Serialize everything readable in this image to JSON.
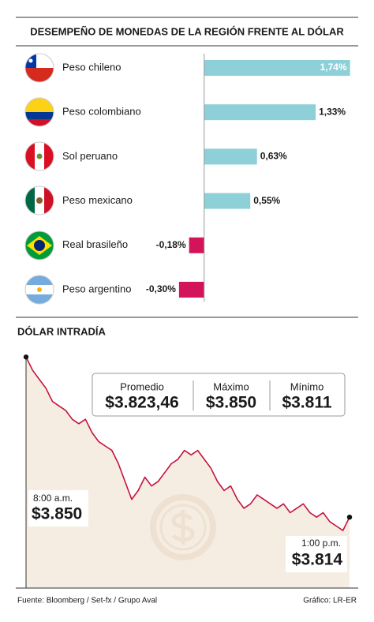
{
  "chart_data": [
    {
      "type": "bar",
      "orientation": "horizontal",
      "title": "DESEMPEÑO DE MONEDAS DE LA REGIÓN FRENTE AL DÓLAR",
      "categories": [
        "Peso chileno",
        "Peso colombiano",
        "Sol peruano",
        "Peso mexicano",
        "Real brasileño",
        "Peso argentino"
      ],
      "values": [
        1.74,
        1.33,
        0.63,
        0.55,
        -0.18,
        -0.3
      ],
      "value_labels": [
        "1,74%",
        "1,33%",
        "0,63%",
        "0,55%",
        "-0,18%",
        "-0,30%"
      ],
      "colors": {
        "positive": "#8dd0d8",
        "negative": "#d3145a"
      },
      "xlim": [
        -1.4,
        1.8
      ]
    },
    {
      "type": "line",
      "title": "DÓLAR INTRADÍA",
      "series": [
        {
          "name": "Dólar",
          "color": "#c4123f",
          "values": [
            3850,
            3847,
            3845,
            3843,
            3840,
            3839,
            3838,
            3836,
            3835,
            3836,
            3833,
            3831,
            3830,
            3829,
            3826,
            3822,
            3818,
            3820,
            3823,
            3821,
            3822,
            3824,
            3826,
            3827,
            3829,
            3828,
            3829,
            3827,
            3825,
            3822,
            3820,
            3821,
            3818,
            3816,
            3817,
            3819,
            3818,
            3817,
            3816,
            3817,
            3815,
            3816,
            3817,
            3815,
            3814,
            3815,
            3813,
            3812,
            3811,
            3814
          ]
        }
      ],
      "area_color": "#f6ede2",
      "ylim": [
        3808,
        3852
      ],
      "stats": [
        {
          "label": "Promedio",
          "value": "$3.823,46"
        },
        {
          "label": "Máximo",
          "value": "$3.850"
        },
        {
          "label": "Mínimo",
          "value": "$3.811"
        }
      ],
      "annotations": [
        {
          "time": "8:00 a.m.",
          "value": "$3.850"
        },
        {
          "time": "1:00 p.m.",
          "value": "$3.814"
        }
      ]
    }
  ],
  "footer": {
    "source": "Fuente: Bloomberg / Set-fx / Grupo Aval",
    "credit": "Gráfico: LR-ER"
  }
}
